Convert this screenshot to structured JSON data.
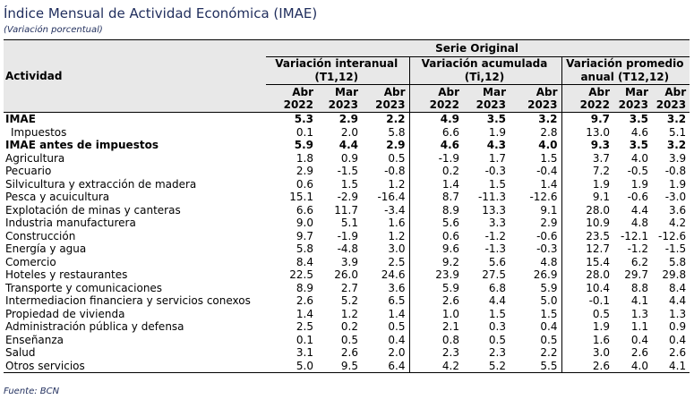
{
  "title": "Índice Mensual de Actividad Económica (IMAE)",
  "subtitle": "(Variación porcentual)",
  "source": "Fuente: BCN",
  "header": {
    "activity": "Actividad",
    "serie": "Serie Original",
    "groups": [
      "Variación interanual (T1,12)",
      "Variación acumulada (Ti,12)",
      "Variación promedio anual (T12,12)"
    ],
    "periods": [
      [
        "Abr",
        "2022"
      ],
      [
        "Mar",
        "2023"
      ],
      [
        "Abr",
        "2023"
      ],
      [
        "Abr",
        "2022"
      ],
      [
        "Mar",
        "2023"
      ],
      [
        "Abr",
        "2023"
      ],
      [
        "Abr",
        "2022"
      ],
      [
        "Mar",
        "2023"
      ],
      [
        "Abr",
        "2023"
      ]
    ]
  },
  "rows": [
    {
      "label": "IMAE",
      "bold": true,
      "indent": false,
      "values": [
        "5.3",
        "2.9",
        "2.2",
        "4.9",
        "3.5",
        "3.2",
        "9.7",
        "3.5",
        "3.2"
      ]
    },
    {
      "label": "Impuestos",
      "bold": false,
      "indent": true,
      "values": [
        "0.1",
        "2.0",
        "5.8",
        "6.6",
        "1.9",
        "2.8",
        "13.0",
        "4.6",
        "5.1"
      ]
    },
    {
      "label": "IMAE antes de impuestos",
      "bold": true,
      "indent": false,
      "values": [
        "5.9",
        "4.4",
        "2.9",
        "4.6",
        "4.3",
        "4.0",
        "9.3",
        "3.5",
        "3.2"
      ]
    },
    {
      "label": "Agricultura",
      "bold": false,
      "indent": false,
      "values": [
        "1.8",
        "0.9",
        "0.5",
        "-1.9",
        "1.7",
        "1.5",
        "3.7",
        "4.0",
        "3.9"
      ]
    },
    {
      "label": "Pecuario",
      "bold": false,
      "indent": false,
      "values": [
        "2.9",
        "-1.5",
        "-0.8",
        "0.2",
        "-0.3",
        "-0.4",
        "7.2",
        "-0.5",
        "-0.8"
      ]
    },
    {
      "label": "Silvicultura y extracción de madera",
      "bold": false,
      "indent": false,
      "values": [
        "0.6",
        "1.5",
        "1.2",
        "1.4",
        "1.5",
        "1.4",
        "1.9",
        "1.9",
        "1.9"
      ]
    },
    {
      "label": "Pesca y acuicultura",
      "bold": false,
      "indent": false,
      "values": [
        "15.1",
        "-2.9",
        "-16.4",
        "8.7",
        "-11.3",
        "-12.6",
        "9.1",
        "-0.6",
        "-3.0"
      ]
    },
    {
      "label": "Explotación de minas y canteras",
      "bold": false,
      "indent": false,
      "values": [
        "6.6",
        "11.7",
        "-3.4",
        "8.9",
        "13.3",
        "9.1",
        "28.0",
        "4.4",
        "3.6"
      ]
    },
    {
      "label": "Industria manufacturera",
      "bold": false,
      "indent": false,
      "values": [
        "9.0",
        "5.1",
        "1.6",
        "5.6",
        "3.3",
        "2.9",
        "10.9",
        "4.8",
        "4.2"
      ]
    },
    {
      "label": "Construcción",
      "bold": false,
      "indent": false,
      "values": [
        "9.7",
        "-1.9",
        "1.2",
        "0.6",
        "-1.2",
        "-0.6",
        "23.5",
        "-12.1",
        "-12.6"
      ]
    },
    {
      "label": "Energía y agua",
      "bold": false,
      "indent": false,
      "values": [
        "5.8",
        "-4.8",
        "3.0",
        "9.6",
        "-1.3",
        "-0.3",
        "12.7",
        "-1.2",
        "-1.5"
      ]
    },
    {
      "label": "Comercio",
      "bold": false,
      "indent": false,
      "values": [
        "8.4",
        "3.9",
        "2.5",
        "9.2",
        "5.6",
        "4.8",
        "15.4",
        "6.2",
        "5.8"
      ]
    },
    {
      "label": "Hoteles y restaurantes",
      "bold": false,
      "indent": false,
      "values": [
        "22.5",
        "26.0",
        "24.6",
        "23.9",
        "27.5",
        "26.9",
        "28.0",
        "29.7",
        "29.8"
      ]
    },
    {
      "label": "Transporte y comunicaciones",
      "bold": false,
      "indent": false,
      "values": [
        "8.9",
        "2.7",
        "3.6",
        "5.9",
        "6.8",
        "5.9",
        "10.4",
        "8.8",
        "8.4"
      ]
    },
    {
      "label": "Intermediacion financiera y servicios conexos",
      "bold": false,
      "indent": false,
      "values": [
        "2.6",
        "5.2",
        "6.5",
        "2.6",
        "4.4",
        "5.0",
        "-0.1",
        "4.1",
        "4.4"
      ]
    },
    {
      "label": "Propiedad de vivienda",
      "bold": false,
      "indent": false,
      "values": [
        "1.4",
        "1.2",
        "1.4",
        "1.0",
        "1.5",
        "1.5",
        "0.5",
        "1.3",
        "1.3"
      ]
    },
    {
      "label": "Administración pública y defensa",
      "bold": false,
      "indent": false,
      "values": [
        "2.5",
        "0.2",
        "0.5",
        "2.1",
        "0.3",
        "0.4",
        "1.9",
        "1.1",
        "0.9"
      ]
    },
    {
      "label": "Enseñanza",
      "bold": false,
      "indent": false,
      "values": [
        "0.1",
        "0.5",
        "0.4",
        "0.8",
        "0.5",
        "0.5",
        "1.6",
        "0.4",
        "0.4"
      ]
    },
    {
      "label": "Salud",
      "bold": false,
      "indent": false,
      "values": [
        "3.1",
        "2.6",
        "2.0",
        "2.3",
        "2.3",
        "2.2",
        "3.0",
        "2.6",
        "2.6"
      ]
    },
    {
      "label": "Otros servicios",
      "bold": false,
      "indent": false,
      "values": [
        "5.0",
        "9.5",
        "6.4",
        "4.2",
        "5.2",
        "5.5",
        "2.6",
        "4.0",
        "4.1"
      ]
    }
  ]
}
